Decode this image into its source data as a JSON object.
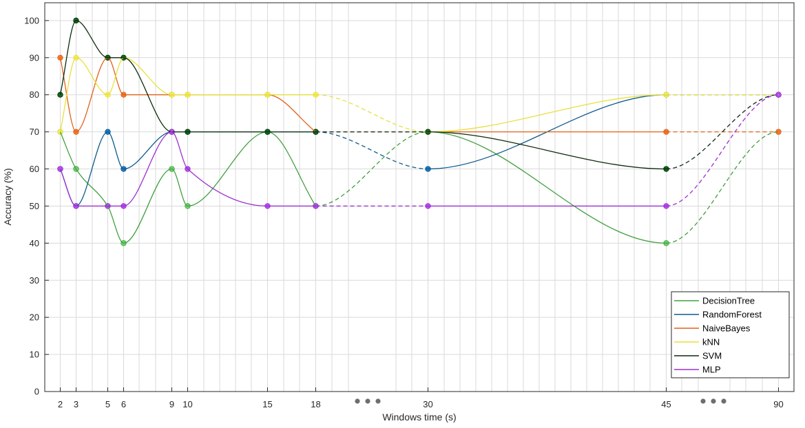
{
  "chart_data": {
    "type": "line",
    "xlabel": "Windows time (s)",
    "ylabel": "Accuracy (%)",
    "ylim": [
      0,
      105
    ],
    "yticks": [
      0,
      10,
      20,
      30,
      40,
      50,
      60,
      70,
      80,
      90,
      100
    ],
    "x": [
      2,
      3,
      5,
      6,
      9,
      10,
      15,
      18,
      30,
      45,
      90
    ],
    "x_tick_labels": [
      "2",
      "3",
      "5",
      "6",
      "9",
      "10",
      "15",
      "18",
      "30",
      "45",
      "90"
    ],
    "axis_breaks": [
      "between 18 and 30",
      "between 45 and 90"
    ],
    "grid": true,
    "legend_position": "bottom-right",
    "series": [
      {
        "name": "DecisionTree",
        "color": "#3f9f3f",
        "marker": "#6dd36d",
        "values": [
          70,
          60,
          50,
          40,
          60,
          50,
          70,
          50,
          70,
          40,
          70
        ]
      },
      {
        "name": "RandomForest",
        "color": "#0c5a8c",
        "marker": "#1f7ac0",
        "values": [
          60,
          50,
          70,
          60,
          70,
          70,
          70,
          70,
          60,
          80,
          80
        ]
      },
      {
        "name": "NaiveBayes",
        "color": "#e0621a",
        "marker": "#f07a30",
        "values": [
          90,
          70,
          90,
          80,
          80,
          80,
          80,
          70,
          70,
          70,
          70
        ]
      },
      {
        "name": "kNN",
        "color": "#e8e03a",
        "marker": "#f2ec5a",
        "values": [
          70,
          90,
          80,
          90,
          80,
          80,
          80,
          80,
          70,
          80,
          80
        ]
      },
      {
        "name": "SVM",
        "color": "#0b2a0b",
        "marker": "#0f6a1a",
        "values": [
          80,
          100,
          90,
          90,
          70,
          70,
          70,
          70,
          70,
          60,
          80
        ]
      },
      {
        "name": "MLP",
        "color": "#9a2fd0",
        "marker": "#b84ef0",
        "values": [
          60,
          50,
          50,
          50,
          70,
          60,
          50,
          50,
          50,
          50,
          80
        ]
      }
    ]
  }
}
